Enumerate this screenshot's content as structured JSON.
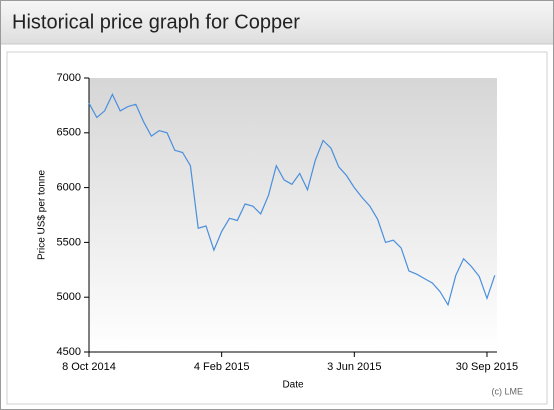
{
  "chart_data": {
    "type": "line",
    "title": "Historical price graph for Copper",
    "xlabel": "Date",
    "ylabel": "Price US$ per tonne",
    "credit": "(c) LME",
    "color": "#4a8fdc",
    "grid": false,
    "x": [
      "2014-10-08",
      "2014-10-15",
      "2014-10-22",
      "2014-10-29",
      "2014-11-05",
      "2014-11-12",
      "2014-11-19",
      "2014-11-26",
      "2014-12-03",
      "2014-12-10",
      "2014-12-17",
      "2014-12-24",
      "2014-12-31",
      "2015-01-07",
      "2015-01-14",
      "2015-01-21",
      "2015-01-28",
      "2015-02-04",
      "2015-02-11",
      "2015-02-18",
      "2015-02-25",
      "2015-03-04",
      "2015-03-11",
      "2015-03-18",
      "2015-03-25",
      "2015-04-01",
      "2015-04-08",
      "2015-04-15",
      "2015-04-22",
      "2015-04-29",
      "2015-05-06",
      "2015-05-13",
      "2015-05-20",
      "2015-05-27",
      "2015-06-03",
      "2015-06-10",
      "2015-06-17",
      "2015-06-24",
      "2015-07-01",
      "2015-07-08",
      "2015-07-15",
      "2015-07-22",
      "2015-07-29",
      "2015-08-05",
      "2015-08-12",
      "2015-08-19",
      "2015-08-26",
      "2015-09-02",
      "2015-09-09",
      "2015-09-16",
      "2015-09-23",
      "2015-09-30",
      "2015-10-07"
    ],
    "values": [
      6770,
      6640,
      6700,
      6850,
      6700,
      6740,
      6760,
      6600,
      6470,
      6520,
      6500,
      6340,
      6320,
      6200,
      5630,
      5650,
      5430,
      5600,
      5720,
      5700,
      5850,
      5830,
      5760,
      5930,
      6200,
      6070,
      6030,
      6130,
      5980,
      6250,
      6430,
      6360,
      6190,
      6110,
      6000,
      5910,
      5830,
      5710,
      5500,
      5520,
      5450,
      5240,
      5210,
      5170,
      5130,
      5050,
      4930,
      5200,
      5350,
      5280,
      5190,
      4990,
      5200
    ],
    "xlim": [
      "2014-10-08",
      "2015-10-09"
    ],
    "xticks": [
      {
        "value": "2014-10-08",
        "label": "8 Oct 2014"
      },
      {
        "value": "2015-02-04",
        "label": "4 Feb 2015"
      },
      {
        "value": "2015-06-03",
        "label": "3 Jun 2015"
      },
      {
        "value": "2015-09-30",
        "label": "30 Sep 2015"
      }
    ],
    "ylim": [
      4500,
      7000
    ],
    "yticks": [
      4500,
      5000,
      5500,
      6000,
      6500,
      7000
    ]
  }
}
